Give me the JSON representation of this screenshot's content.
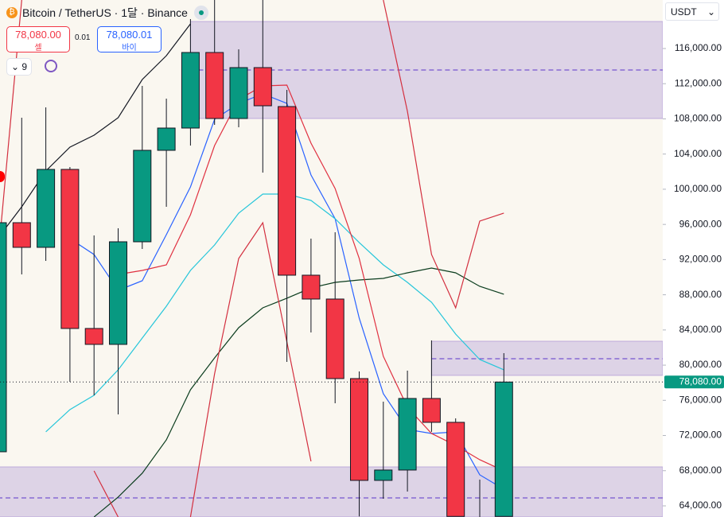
{
  "header": {
    "title": "Bitcoin / TetherUS · 1달 · Binance",
    "sell_price": "78,080.00",
    "sell_label": "셀",
    "spread": "0.01",
    "buy_price": "78,080.01",
    "buy_label": "바이",
    "indicator_count": "9",
    "currency": "USDT"
  },
  "chart_data": {
    "type": "candlestick",
    "ylim": [
      62734,
      121516
    ],
    "yticks": [
      {
        "value": 64000,
        "label": "64,000.00"
      },
      {
        "value": 68000,
        "label": "68,000.00"
      },
      {
        "value": 72000,
        "label": "72,000.00"
      },
      {
        "value": 76000,
        "label": "76,000.00"
      },
      {
        "value": 80000,
        "label": "80,000.00"
      },
      {
        "value": 84000,
        "label": "84,000.00"
      },
      {
        "value": 88000,
        "label": "88,000.00"
      },
      {
        "value": 92000,
        "label": "92,000.00"
      },
      {
        "value": 96000,
        "label": "96,000.00"
      },
      {
        "value": 100000,
        "label": "100,000.00"
      },
      {
        "value": 104000,
        "label": "104,000.00"
      },
      {
        "value": 108000,
        "label": "108,000.00"
      },
      {
        "value": 112000,
        "label": "112,000.00"
      },
      {
        "value": 116000,
        "label": "116,000.00"
      }
    ],
    "up_color": "#089981",
    "down_color": "#f23645",
    "last_price": {
      "value": 78080,
      "label": "78,080.00"
    },
    "candles": [
      {
        "open": 70152,
        "high": 96196,
        "low": 62734,
        "close": 96196
      },
      {
        "open": 96196,
        "high": 108133,
        "low": 90318,
        "close": 93393
      },
      {
        "open": 93393,
        "high": 109308,
        "low": 91855,
        "close": 102255
      },
      {
        "open": 102255,
        "high": 102526,
        "low": 78110,
        "close": 84169
      },
      {
        "open": 84169,
        "high": 94749,
        "low": 76573,
        "close": 82360
      },
      {
        "open": 82360,
        "high": 95563,
        "low": 74402,
        "close": 94026
      },
      {
        "open": 94026,
        "high": 111750,
        "low": 93212,
        "close": 104425
      },
      {
        "open": 104425,
        "high": 110303,
        "low": 98004,
        "close": 106957
      },
      {
        "open": 106957,
        "high": 119346,
        "low": 104967,
        "close": 115548
      },
      {
        "open": 115548,
        "high": 121516,
        "low": 107319,
        "close": 108042
      },
      {
        "open": 108042,
        "high": 115910,
        "low": 107047,
        "close": 113830
      },
      {
        "open": 113830,
        "high": 121516,
        "low": 101893,
        "close": 109489
      },
      {
        "open": 109399,
        "high": 111298,
        "low": 80371,
        "close": 90227
      },
      {
        "open": 90227,
        "high": 94387,
        "low": 83716,
        "close": 87515
      },
      {
        "open": 87515,
        "high": 95111,
        "low": 75668,
        "close": 78472
      },
      {
        "open": 78472,
        "high": 79285,
        "low": 62800,
        "close": 66897
      },
      {
        "open": 66897,
        "high": 75849,
        "low": 64816,
        "close": 68073
      },
      {
        "open": 68073,
        "high": 79375,
        "low": 65630,
        "close": 76211
      },
      {
        "open": 76211,
        "high": 82813,
        "low": 72413,
        "close": 73498
      },
      {
        "open": 73498,
        "high": 73950,
        "low": 62800,
        "close": 62800
      },
      {
        "open": null,
        "high": 66990,
        "low": null,
        "close": null
      },
      {
        "open": 62800,
        "high": 81365,
        "low": 62800,
        "close": 78080
      }
    ],
    "series": [
      {
        "color": "#131722",
        "values": [
          94387,
          98004,
          102074,
          104787,
          106143,
          108133,
          112473,
          115186,
          118803,
          null,
          null,
          null,
          null,
          null,
          null,
          null,
          null,
          null,
          null,
          null,
          null,
          null
        ]
      },
      {
        "color": "#2962ff",
        "values": [
          null,
          null,
          null,
          94387,
          92578,
          88509,
          89594,
          94839,
          100265,
          107952,
          109761,
          110846,
          109761,
          101622,
          96648,
          85344,
          76753,
          72684,
          72232,
          72413,
          67530,
          65902
        ]
      },
      {
        "color": "#26c6da",
        "values": [
          null,
          null,
          72413,
          74945,
          76573,
          79466,
          83083,
          86701,
          90770,
          93664,
          97281,
          99452,
          99452,
          98728,
          96648,
          93935,
          91403,
          89413,
          87152,
          83535,
          80641,
          79466
        ]
      },
      {
        "color": "#0b3d1e",
        "values": [
          null,
          null,
          null,
          null,
          62734,
          64997,
          67710,
          71508,
          77204,
          80821,
          84259,
          86520,
          87605,
          88781,
          89413,
          89685,
          89866,
          90499,
          91041,
          90499,
          88962,
          88058
        ]
      },
      {
        "color": "#e03040",
        "values": [
          null,
          null,
          null,
          null,
          null,
          90318,
          90770,
          91403,
          97100,
          104967,
          110212,
          111750,
          111840,
          105239,
          100084,
          92127,
          81004,
          75216,
          72232,
          70876,
          69248,
          67982
        ]
      },
      {
        "color": "#d32f3f",
        "values": [
          91674,
          121516,
          null,
          null,
          67982,
          62734,
          null,
          null,
          62734,
          79014,
          92127,
          96196,
          82631,
          69067,
          null,
          null,
          121516,
          108856,
          92578,
          86520,
          96377,
          97281
        ]
      }
    ],
    "zones": [
      {
        "start": 8,
        "low": 108042,
        "high": 119075,
        "mid": 113558
      },
      {
        "start": 18,
        "low": 78833,
        "high": 82722,
        "mid": 80733
      },
      {
        "start": 0,
        "low": 62734,
        "high": 68434,
        "mid": 64907
      }
    ],
    "zone_color": "#9575cd"
  }
}
